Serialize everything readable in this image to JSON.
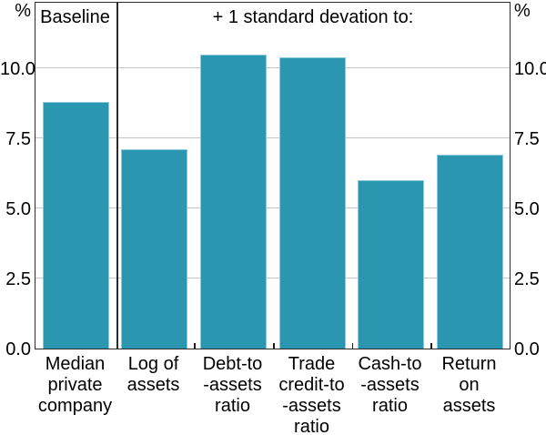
{
  "chart_data": {
    "type": "bar",
    "baseline_panel_label": "Baseline",
    "title": "+ 1 standard devation to:",
    "unit_left": "%",
    "unit_right": "%",
    "categories": [
      "Median private company",
      "Log of assets",
      "Debt-to-assets ratio",
      "Trade credit-to-assets ratio",
      "Cash-to-assets ratio",
      "Return on assets"
    ],
    "category_lines": [
      [
        "Median",
        "private",
        "company"
      ],
      [
        "Log of",
        "assets"
      ],
      [
        "Debt-to",
        "-assets",
        "ratio"
      ],
      [
        "Trade",
        "credit-to",
        "-assets",
        "ratio"
      ],
      [
        "Cash-to",
        "-assets",
        "ratio"
      ],
      [
        "Return",
        "on",
        "assets"
      ]
    ],
    "values": [
      8.8,
      7.1,
      10.5,
      10.4,
      6.0,
      6.9
    ],
    "sections": [
      "baseline",
      "treatment",
      "treatment",
      "treatment",
      "treatment",
      "treatment"
    ],
    "yticks": [
      "0.0",
      "2.5",
      "5.0",
      "7.5",
      "10.0"
    ],
    "ytick_values": [
      0,
      2.5,
      5,
      7.5,
      10
    ],
    "ylim": [
      0,
      12.4
    ],
    "grid": true,
    "legend": "none",
    "bar_color": "#2a96b0",
    "bar_edge_color": "#8ccbdc",
    "grid_color": "#c6c6c6",
    "axis_color": "#2b2b2b"
  }
}
